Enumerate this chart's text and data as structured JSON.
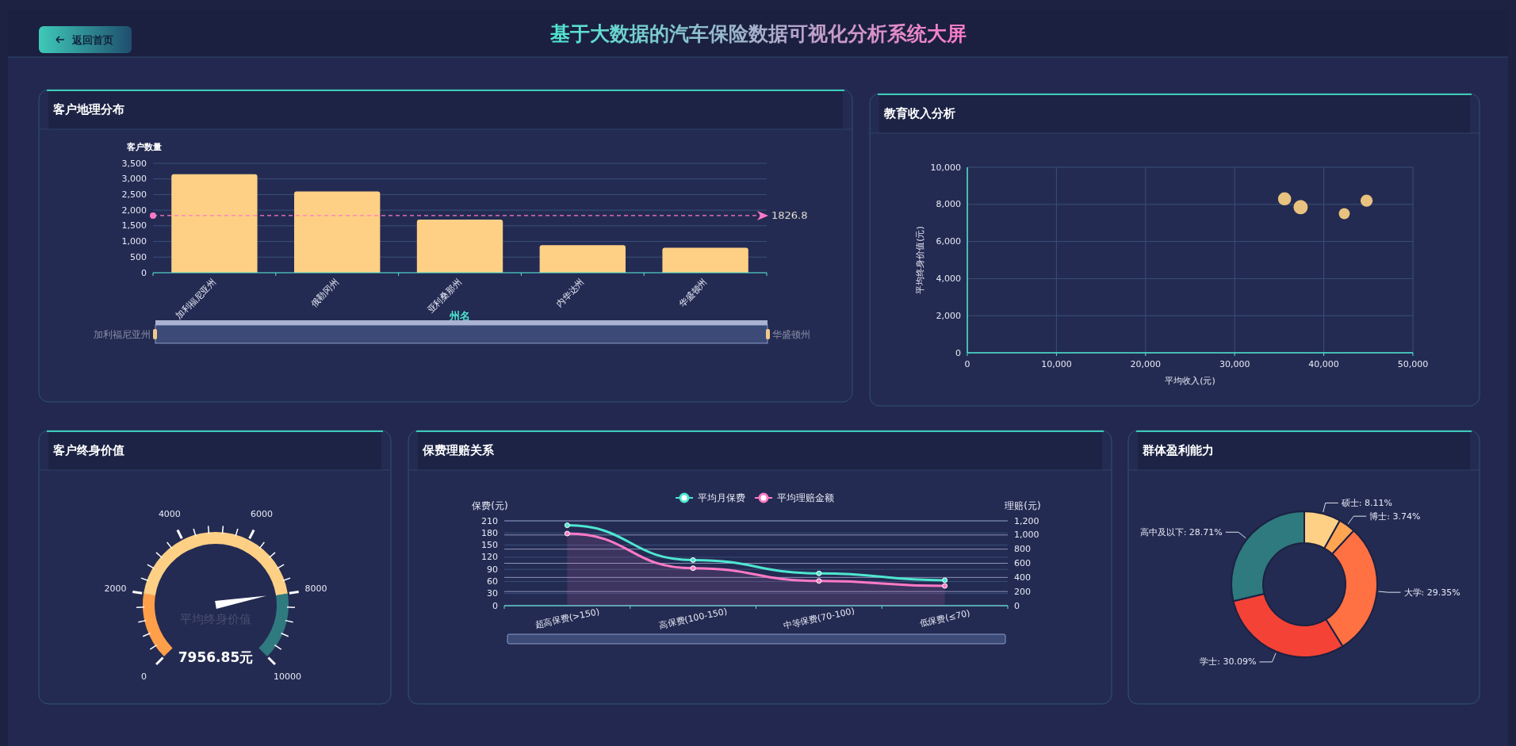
{
  "chart_data": [
    {
      "type": "other",
      "title": "基于大数据的汽车保险数据可视化分析系统大屏",
      "annotations": [
        "返回首页"
      ]
    },
    {
      "type": "bar",
      "title": "客户地理分布",
      "xlabel": "州名",
      "ylabel": "客户数量",
      "categories": [
        "加利福尼亚州",
        "俄勒冈州",
        "亚利桑那州",
        "内华达州",
        "华盛顿州"
      ],
      "values": [
        3150,
        2600,
        1700,
        880,
        800
      ],
      "color": "#fdd085",
      "ylim": [
        0,
        3500
      ],
      "yticks": [
        0,
        500,
        {
          "value": 1000,
          "label": "1,000"
        },
        {
          "value": 1500,
          "label": "1,500"
        },
        {
          "value": 2000,
          "label": "2,000"
        },
        {
          "value": 2500,
          "label": "2,500"
        },
        {
          "value": 3000,
          "label": "3,000"
        },
        {
          "value": 3500,
          "label": "3,500"
        }
      ],
      "grid": "y",
      "ref_lines": [
        {
          "axis": "y",
          "value": 1826.8,
          "label": "1826.8",
          "color": "#ff7ac6",
          "line_style": "dashed"
        }
      ]
    },
    {
      "type": "bubble",
      "title": "教育收入分析",
      "xlabel": "平均收入(元)",
      "ylabel": "平均终身价值(元)",
      "x": [
        35600,
        37400,
        42300,
        44800
      ],
      "values": [
        8300,
        7850,
        7500,
        8200
      ],
      "sizes": [
        0.85,
        1,
        0.59,
        0.72
      ],
      "color": "#e8c27e",
      "xlim": [
        0,
        50000
      ],
      "xticks": [
        0,
        {
          "value": 10000,
          "label": "10,000"
        },
        {
          "value": 20000,
          "label": "20,000"
        },
        {
          "value": 30000,
          "label": "30,000"
        },
        {
          "value": 40000,
          "label": "40,000"
        },
        {
          "value": 50000,
          "label": "50,000"
        }
      ],
      "ylim": [
        0,
        10000
      ],
      "yticks": [
        0,
        {
          "value": 2000,
          "label": "2,000"
        },
        {
          "value": 4000,
          "label": "4,000"
        },
        {
          "value": 6000,
          "label": "6,000"
        },
        {
          "value": 8000,
          "label": "8,000"
        },
        {
          "value": 10000,
          "label": "10,000"
        }
      ],
      "grid": true
    },
    {
      "type": "other",
      "title": "客户终身价值",
      "subtitle": "平均终身价值",
      "values": [
        7956.85
      ],
      "value_labels": [
        "7956.85元"
      ],
      "annotations": [
        "0",
        "2000",
        "4000",
        "6000",
        "8000",
        "10000"
      ]
    },
    {
      "type": "line",
      "title": "保费理赔关系",
      "ylabel": "保费(元)",
      "y2label": "理赔(元)",
      "categories": [
        "超高保费(>150)",
        "高保费(100-150)",
        "中等保费(70-100)",
        "低保费(≤70)"
      ],
      "series": [
        {
          "name": "平均月保费",
          "color": "#4ee6d0",
          "values": [
            199,
            113,
            80,
            63
          ]
        },
        {
          "name": "平均理赔金额",
          "color": "#ff7ac6",
          "axis": "y2",
          "type": "area",
          "values": [
            1020,
            530,
            350,
            280
          ]
        }
      ],
      "ylim": [
        0,
        210
      ],
      "yticks": [
        0,
        30,
        60,
        90,
        120,
        150,
        180,
        210
      ],
      "y2lim": [
        0,
        1200
      ],
      "y2ticks": [
        0,
        200,
        400,
        600,
        800,
        {
          "value": 1000,
          "label": "1,000"
        },
        {
          "value": 1200,
          "label": "1,200"
        }
      ],
      "grid": "y",
      "legend": "top",
      "marker": "circle"
    },
    {
      "type": "donut",
      "title": "群体盈利能力",
      "categories": [
        "硕士",
        "博士",
        "大学",
        "学士",
        "高中及以下"
      ],
      "values": [
        8.11,
        3.74,
        29.35,
        30.09,
        28.71
      ],
      "colors": [
        "#fdd085",
        "#ffa552",
        "#ff7043",
        "#f44336",
        "#2e7a7e"
      ],
      "value_labels": [
        "8.11%",
        "3.74%",
        "29.35%",
        "30.09%",
        "28.71%"
      ]
    }
  ]
}
